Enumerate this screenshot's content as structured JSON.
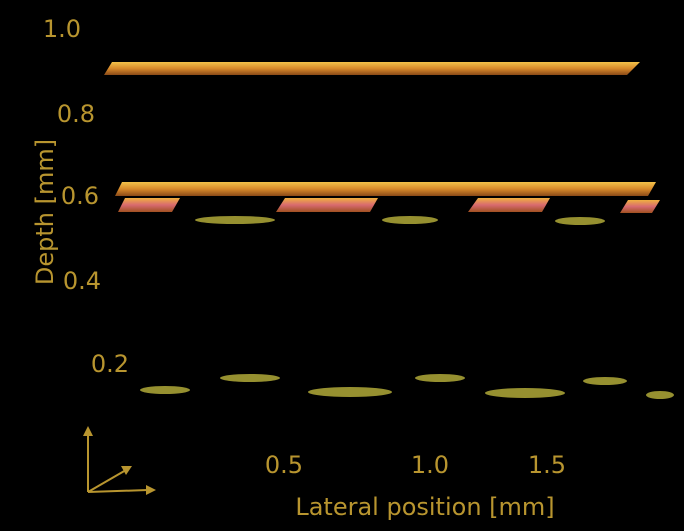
{
  "depth_axis": {
    "title": "Depth [mm]",
    "ticks": [
      "1.0",
      "0.8",
      "0.6",
      "0.4",
      "0.2"
    ]
  },
  "lateral_axis": {
    "title": "Lateral position [mm]",
    "ticks": [
      "0.5",
      "1.0",
      "1.5"
    ]
  }
}
